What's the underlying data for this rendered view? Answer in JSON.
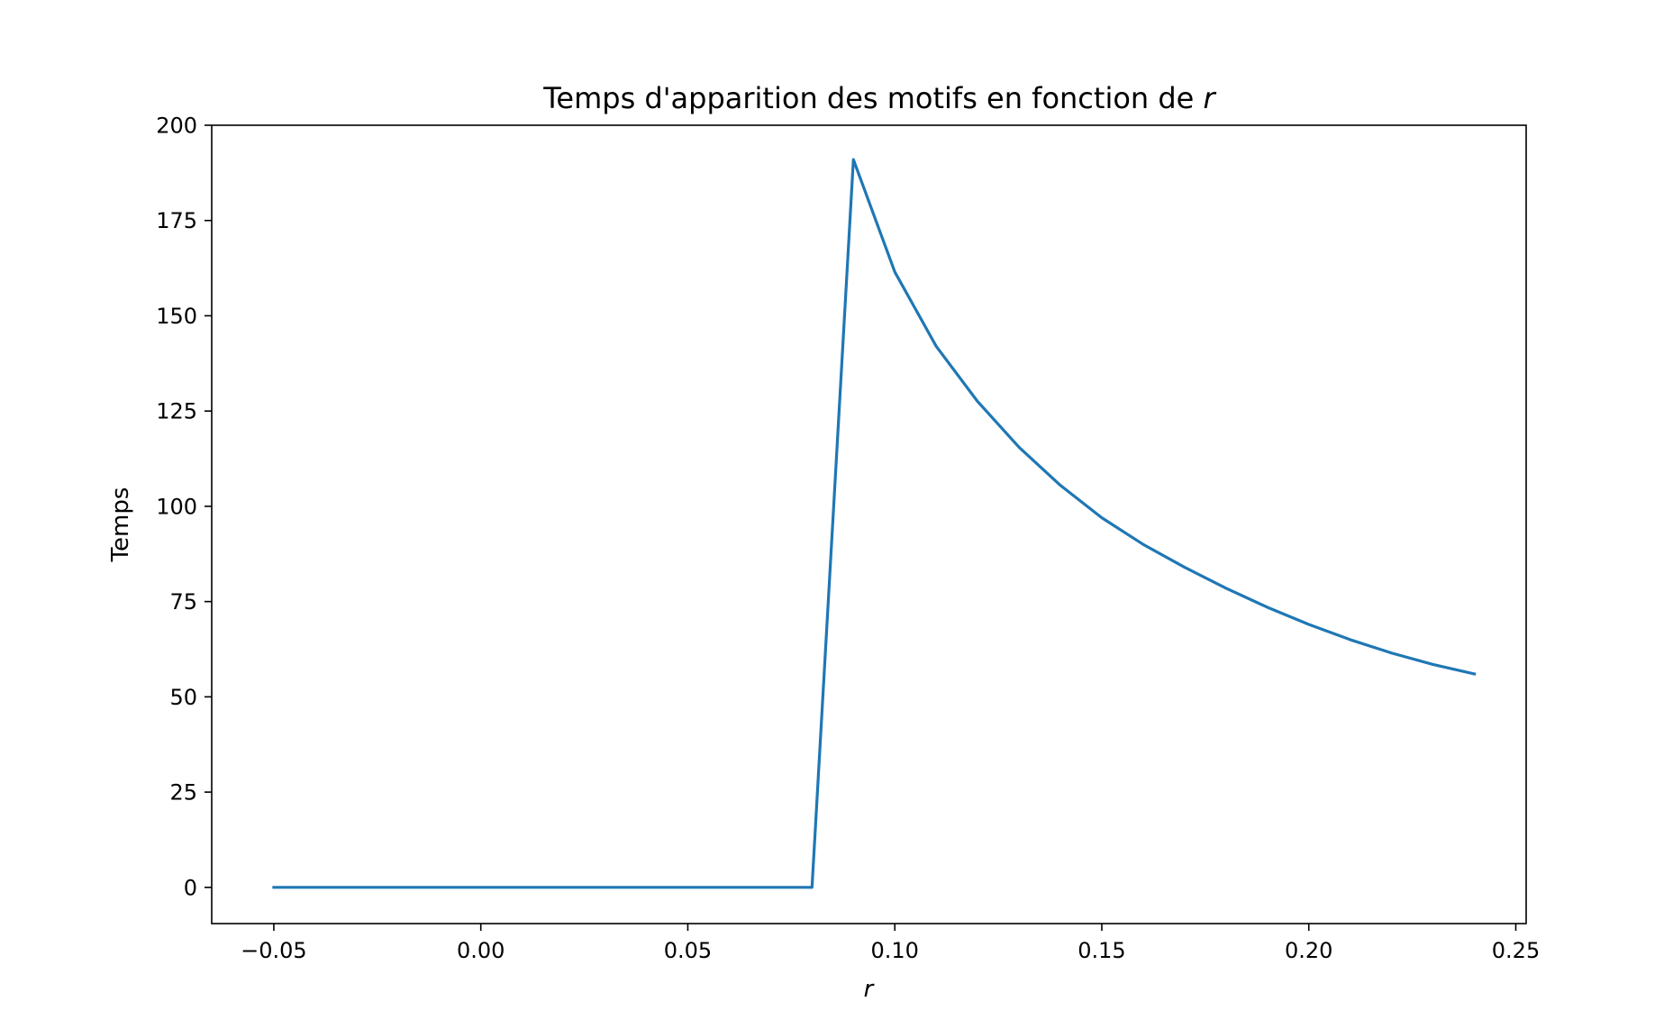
{
  "chart_data": {
    "type": "line",
    "title": "Temps d'apparition des motifs en fonction de",
    "title_variable": "r",
    "xlabel": "r",
    "ylabel": "Temps",
    "xlim": [
      -0.065,
      0.2525
    ],
    "ylim": [
      -9.5,
      200
    ],
    "xticks": [
      -0.05,
      0.0,
      0.05,
      0.1,
      0.15,
      0.2,
      0.25
    ],
    "xtick_labels": [
      "−0.05",
      "0.00",
      "0.05",
      "0.10",
      "0.15",
      "0.20",
      "0.25"
    ],
    "yticks": [
      0,
      25,
      50,
      75,
      100,
      125,
      150,
      175,
      200
    ],
    "ytick_labels": [
      "0",
      "25",
      "50",
      "75",
      "100",
      "125",
      "150",
      "175",
      "200"
    ],
    "grid": false,
    "series": [
      {
        "color": "#1f77b4",
        "x": [
          -0.05,
          -0.04,
          -0.03,
          -0.02,
          -0.01,
          0.0,
          0.01,
          0.02,
          0.03,
          0.04,
          0.05,
          0.06,
          0.07,
          0.08,
          0.09,
          0.1,
          0.11,
          0.12,
          0.13,
          0.14,
          0.15,
          0.16,
          0.17,
          0.18,
          0.19,
          0.2,
          0.21,
          0.22,
          0.23,
          0.24
        ],
        "y": [
          0,
          0,
          0,
          0,
          0,
          0,
          0,
          0,
          0,
          0,
          0,
          0,
          0,
          0,
          191,
          161.5,
          142,
          127.5,
          115.5,
          105.5,
          97,
          90,
          84,
          78.5,
          73.5,
          69,
          65,
          61.5,
          58.5,
          56
        ]
      }
    ]
  }
}
